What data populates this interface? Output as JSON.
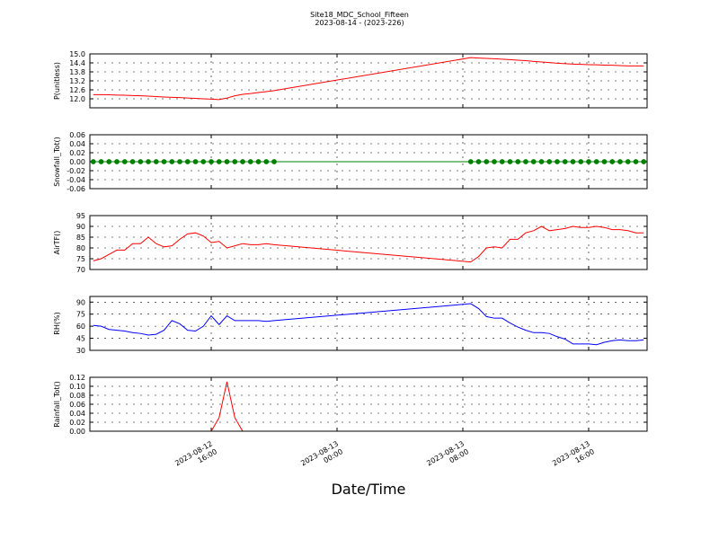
{
  "title": "Site18_MDC_School_Fifteen",
  "subtitle": "2023-08-14 - (2023-226)",
  "xlabel": "Date/Time",
  "xlim": [
    "2023-08-12 08:17",
    "2023-08-13 19:43"
  ],
  "xticks": [
    "2023-08-12 16:00",
    "2023-08-13 00:00",
    "2023-08-13 08:00",
    "2023-08-13 16:00"
  ],
  "chart_data": [
    {
      "type": "line",
      "ylabel": "P(unitless)",
      "color": "#ff0000",
      "grid": true,
      "ylim": [
        11.4,
        15.0
      ],
      "yticks": [
        {
          "value": 12.0,
          "label": "12.0"
        },
        12.6,
        13.2,
        13.8,
        14.4,
        {
          "value": 15.0,
          "label": "15.0"
        }
      ],
      "x": [
        "2023-08-12 08:30",
        "2023-08-12 09:00",
        "2023-08-12 09:30",
        "2023-08-12 10:00",
        "2023-08-12 10:30",
        "2023-08-12 11:00",
        "2023-08-12 11:30",
        "2023-08-12 12:00",
        "2023-08-12 12:30",
        "2023-08-12 13:00",
        "2023-08-12 13:30",
        "2023-08-12 14:00",
        "2023-08-12 14:30",
        "2023-08-12 15:00",
        "2023-08-12 15:30",
        "2023-08-12 16:00",
        "2023-08-12 16:30",
        "2023-08-12 17:00",
        "2023-08-12 17:30",
        "2023-08-12 18:00",
        "2023-08-12 18:30",
        "2023-08-12 19:00",
        "2023-08-12 19:30",
        "2023-08-12 20:00",
        "2023-08-13 08:30",
        "2023-08-13 09:00",
        "2023-08-13 09:30",
        "2023-08-13 10:00",
        "2023-08-13 10:30",
        "2023-08-13 11:00",
        "2023-08-13 11:30",
        "2023-08-13 12:00",
        "2023-08-13 12:30",
        "2023-08-13 13:00",
        "2023-08-13 13:30",
        "2023-08-13 14:00",
        "2023-08-13 14:30",
        "2023-08-13 15:00",
        "2023-08-13 15:30",
        "2023-08-13 16:00",
        "2023-08-13 16:30",
        "2023-08-13 17:00",
        "2023-08-13 17:30",
        "2023-08-13 18:00",
        "2023-08-13 18:30",
        "2023-08-13 19:00",
        "2023-08-13 19:30"
      ],
      "values": [
        12.28,
        12.28,
        12.27,
        12.25,
        12.24,
        12.22,
        12.2,
        12.18,
        12.15,
        12.12,
        12.1,
        12.08,
        12.05,
        12.03,
        12.0,
        11.98,
        11.95,
        12.05,
        12.2,
        12.3,
        12.35,
        12.42,
        12.48,
        12.55,
        14.75,
        14.72,
        14.7,
        14.68,
        14.65,
        14.62,
        14.58,
        14.55,
        14.5,
        14.46,
        14.42,
        14.38,
        14.35,
        14.32,
        14.3,
        14.28,
        14.27,
        14.25,
        14.24,
        14.22,
        14.2,
        14.2,
        14.2
      ]
    },
    {
      "type": "line",
      "ylabel": "Snowfall_Tot()",
      "color": "#008000",
      "marker": "o",
      "grid": true,
      "ylim": [
        -0.06,
        0.06
      ],
      "yticks": [
        -0.06,
        -0.04,
        -0.02,
        {
          "value": 0,
          "label": "0.00"
        },
        0.02,
        0.04,
        0.06
      ],
      "x": [
        "2023-08-12 08:30",
        "2023-08-12 09:00",
        "2023-08-12 09:30",
        "2023-08-12 10:00",
        "2023-08-12 10:30",
        "2023-08-12 11:00",
        "2023-08-12 11:30",
        "2023-08-12 12:00",
        "2023-08-12 12:30",
        "2023-08-12 13:00",
        "2023-08-12 13:30",
        "2023-08-12 14:00",
        "2023-08-12 14:30",
        "2023-08-12 15:00",
        "2023-08-12 15:30",
        "2023-08-12 16:00",
        "2023-08-12 16:30",
        "2023-08-12 17:00",
        "2023-08-12 17:30",
        "2023-08-12 18:00",
        "2023-08-12 18:30",
        "2023-08-12 19:00",
        "2023-08-12 19:30",
        "2023-08-12 20:00",
        "2023-08-13 08:30",
        "2023-08-13 09:00",
        "2023-08-13 09:30",
        "2023-08-13 10:00",
        "2023-08-13 10:30",
        "2023-08-13 11:00",
        "2023-08-13 11:30",
        "2023-08-13 12:00",
        "2023-08-13 12:30",
        "2023-08-13 13:00",
        "2023-08-13 13:30",
        "2023-08-13 14:00",
        "2023-08-13 14:30",
        "2023-08-13 15:00",
        "2023-08-13 15:30",
        "2023-08-13 16:00",
        "2023-08-13 16:30",
        "2023-08-13 17:00",
        "2023-08-13 17:30",
        "2023-08-13 18:00",
        "2023-08-13 18:30",
        "2023-08-13 19:00",
        "2023-08-13 19:30"
      ],
      "values": [
        0,
        0,
        0,
        0,
        0,
        0,
        0,
        0,
        0,
        0,
        0,
        0,
        0,
        0,
        0,
        0,
        0,
        0,
        0,
        0,
        0,
        0,
        0,
        0,
        0,
        0,
        0,
        0,
        0,
        0,
        0,
        0,
        0,
        0,
        0,
        0,
        0,
        0,
        0,
        0,
        0,
        0,
        0,
        0,
        0,
        0,
        0
      ]
    },
    {
      "type": "line",
      "ylabel": "AirTF()",
      "color": "#ff0000",
      "grid": true,
      "ylim": [
        70,
        95
      ],
      "yticks": [
        70,
        75,
        80,
        85,
        90,
        95
      ],
      "x": [
        "2023-08-12 08:30",
        "2023-08-12 09:00",
        "2023-08-12 09:30",
        "2023-08-12 10:00",
        "2023-08-12 10:30",
        "2023-08-12 11:00",
        "2023-08-12 11:30",
        "2023-08-12 12:00",
        "2023-08-12 12:30",
        "2023-08-12 13:00",
        "2023-08-12 13:30",
        "2023-08-12 14:00",
        "2023-08-12 14:30",
        "2023-08-12 15:00",
        "2023-08-12 15:30",
        "2023-08-12 16:00",
        "2023-08-12 16:30",
        "2023-08-12 17:00",
        "2023-08-12 17:30",
        "2023-08-12 18:00",
        "2023-08-12 18:30",
        "2023-08-12 19:00",
        "2023-08-12 19:30",
        "2023-08-12 20:00",
        "2023-08-13 08:30",
        "2023-08-13 09:00",
        "2023-08-13 09:30",
        "2023-08-13 10:00",
        "2023-08-13 10:30",
        "2023-08-13 11:00",
        "2023-08-13 11:30",
        "2023-08-13 12:00",
        "2023-08-13 12:30",
        "2023-08-13 13:00",
        "2023-08-13 13:30",
        "2023-08-13 14:00",
        "2023-08-13 14:30",
        "2023-08-13 15:00",
        "2023-08-13 15:30",
        "2023-08-13 16:00",
        "2023-08-13 16:30",
        "2023-08-13 17:00",
        "2023-08-13 17:30",
        "2023-08-13 18:00",
        "2023-08-13 18:30",
        "2023-08-13 19:00",
        "2023-08-13 19:30"
      ],
      "values": [
        74,
        75,
        77,
        79,
        79,
        82,
        82,
        85,
        82,
        80.5,
        81,
        84,
        86.5,
        87,
        85.5,
        82.5,
        83,
        80,
        81,
        82,
        81.5,
        81.5,
        82,
        81.5,
        73.5,
        76,
        80,
        80.5,
        80,
        84,
        84,
        87,
        88,
        90,
        88,
        88.5,
        89,
        90,
        89.5,
        89.5,
        90,
        89.5,
        88.5,
        88.5,
        88,
        87,
        87
      ]
    },
    {
      "type": "line",
      "ylabel": "RH(%)",
      "color": "#0000ff",
      "grid": true,
      "ylim": [
        30,
        97
      ],
      "yticks": [
        30,
        45,
        60,
        75,
        90
      ],
      "x": [
        "2023-08-12 08:30",
        "2023-08-12 09:00",
        "2023-08-12 09:30",
        "2023-08-12 10:00",
        "2023-08-12 10:30",
        "2023-08-12 11:00",
        "2023-08-12 11:30",
        "2023-08-12 12:00",
        "2023-08-12 12:30",
        "2023-08-12 13:00",
        "2023-08-12 13:30",
        "2023-08-12 14:00",
        "2023-08-12 14:30",
        "2023-08-12 15:00",
        "2023-08-12 15:30",
        "2023-08-12 16:00",
        "2023-08-12 16:30",
        "2023-08-12 17:00",
        "2023-08-12 17:30",
        "2023-08-12 18:00",
        "2023-08-12 18:30",
        "2023-08-12 19:00",
        "2023-08-12 19:30",
        "2023-08-12 20:00",
        "2023-08-13 08:30",
        "2023-08-13 09:00",
        "2023-08-13 09:30",
        "2023-08-13 10:00",
        "2023-08-13 10:30",
        "2023-08-13 11:00",
        "2023-08-13 11:30",
        "2023-08-13 12:00",
        "2023-08-13 12:30",
        "2023-08-13 13:00",
        "2023-08-13 13:30",
        "2023-08-13 14:00",
        "2023-08-13 14:30",
        "2023-08-13 15:00",
        "2023-08-13 15:30",
        "2023-08-13 16:00",
        "2023-08-13 16:30",
        "2023-08-13 17:00",
        "2023-08-13 17:30",
        "2023-08-13 18:00",
        "2023-08-13 18:30",
        "2023-08-13 19:00",
        "2023-08-13 19:30"
      ],
      "values": [
        61,
        60,
        56,
        55,
        54,
        52,
        51,
        49,
        50,
        55,
        67,
        63,
        55,
        54,
        60,
        73,
        62,
        73,
        67,
        67,
        67,
        67,
        66,
        67,
        88,
        82,
        72,
        70,
        70,
        64,
        59,
        55,
        52,
        52,
        51,
        47,
        44,
        38,
        38,
        38,
        37,
        40,
        42,
        43,
        42,
        42,
        43
      ]
    },
    {
      "type": "line",
      "ylabel": "Rainfall_Tot()",
      "color": "#ff0000",
      "grid": true,
      "ylim": [
        0,
        0.12
      ],
      "yticks": [
        {
          "value": 0,
          "label": "0.00"
        },
        0.02,
        0.04,
        0.06,
        0.08,
        {
          "value": 0.1,
          "label": "0.10"
        },
        0.12
      ],
      "x": [
        "2023-08-12 08:30",
        "2023-08-12 09:00",
        "2023-08-12 09:30",
        "2023-08-12 10:00",
        "2023-08-12 10:30",
        "2023-08-12 11:00",
        "2023-08-12 11:30",
        "2023-08-12 12:00",
        "2023-08-12 12:30",
        "2023-08-12 13:00",
        "2023-08-12 13:30",
        "2023-08-12 14:00",
        "2023-08-12 14:30",
        "2023-08-12 15:00",
        "2023-08-12 15:30",
        "2023-08-12 16:00",
        "2023-08-12 16:30",
        "2023-08-12 17:00",
        "2023-08-12 17:30",
        "2023-08-12 18:00",
        "2023-08-12 18:30",
        "2023-08-12 19:00",
        "2023-08-12 19:30",
        "2023-08-12 20:00",
        "2023-08-13 08:30",
        "2023-08-13 09:00",
        "2023-08-13 09:30",
        "2023-08-13 10:00",
        "2023-08-13 10:30",
        "2023-08-13 11:00",
        "2023-08-13 11:30",
        "2023-08-13 12:00",
        "2023-08-13 12:30",
        "2023-08-13 13:00",
        "2023-08-13 13:30",
        "2023-08-13 14:00",
        "2023-08-13 14:30",
        "2023-08-13 15:00",
        "2023-08-13 15:30",
        "2023-08-13 16:00",
        "2023-08-13 16:30",
        "2023-08-13 17:00",
        "2023-08-13 17:30",
        "2023-08-13 18:00",
        "2023-08-13 18:30",
        "2023-08-13 19:00",
        "2023-08-13 19:30"
      ],
      "values": [
        0,
        0,
        0,
        0,
        0,
        0,
        0,
        0,
        0,
        0,
        0,
        0,
        0,
        0,
        0,
        0,
        0.03,
        0.11,
        0.03,
        0,
        0,
        0,
        0,
        0,
        0,
        0,
        0,
        0,
        0,
        0,
        0,
        0,
        0,
        0,
        0,
        0,
        0,
        0,
        0,
        0,
        0,
        0,
        0,
        0,
        0,
        0,
        0
      ]
    }
  ]
}
